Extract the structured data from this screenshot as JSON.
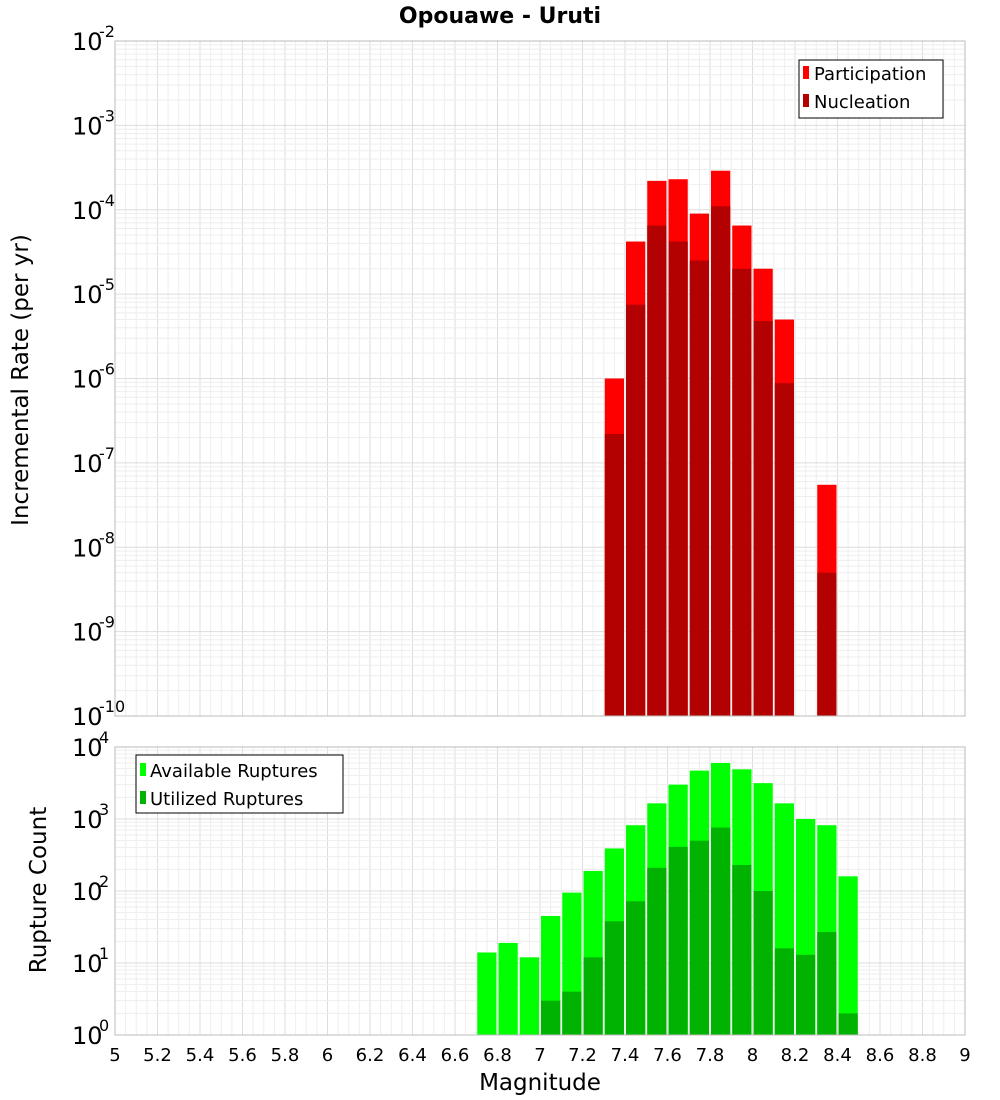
{
  "chart_data": [
    {
      "type": "bar",
      "title": "Opouawe - Uruti",
      "xlabel": "",
      "ylabel": "Incremental Rate (per yr)",
      "xlim": [
        5,
        9
      ],
      "ylim_exponents": [
        -10,
        -2
      ],
      "yscale": "log",
      "grid": true,
      "legend_position": "top-right",
      "bar_width": 0.1,
      "colors": {
        "participation": "#ff0000",
        "nucleation": "#b30000"
      },
      "legend": [
        "Participation",
        "Nucleation"
      ],
      "series": [
        {
          "name": "Participation",
          "x": [
            7.35,
            7.45,
            7.55,
            7.65,
            7.75,
            7.85,
            7.95,
            8.05,
            8.15,
            8.35
          ],
          "values": [
            1e-06,
            4.2e-05,
            0.00022,
            0.00023,
            9e-05,
            0.00029,
            6.5e-05,
            2e-05,
            5e-06,
            5.5e-08
          ]
        },
        {
          "name": "Nucleation",
          "x": [
            7.35,
            7.45,
            7.55,
            7.65,
            7.75,
            7.85,
            7.95,
            8.05,
            8.15,
            8.35
          ],
          "values": [
            2.2e-07,
            7.5e-06,
            6.5e-05,
            4.2e-05,
            2.5e-05,
            0.00011,
            2e-05,
            4.8e-06,
            8.8e-07,
            5e-09
          ]
        }
      ]
    },
    {
      "type": "bar",
      "title": "",
      "xlabel": "Magnitude",
      "ylabel": "Rupture Count",
      "xlim": [
        5,
        9
      ],
      "ylim_exponents": [
        0,
        4
      ],
      "yscale": "log",
      "grid": true,
      "legend_position": "top-left",
      "bar_width": 0.1,
      "colors": {
        "available": "#00ff00",
        "utilized": "#00b300"
      },
      "legend": [
        "Available Ruptures",
        "Utilized Ruptures"
      ],
      "x_ticks": [
        "5",
        "5.2",
        "5.4",
        "5.6",
        "5.8",
        "6",
        "6.2",
        "6.4",
        "6.6",
        "6.8",
        "7",
        "7.2",
        "7.4",
        "7.6",
        "7.8",
        "8",
        "8.2",
        "8.4",
        "8.6",
        "8.8",
        "9"
      ],
      "series": [
        {
          "name": "Available Ruptures",
          "x": [
            6.75,
            6.85,
            6.95,
            7.05,
            7.15,
            7.25,
            7.35,
            7.45,
            7.55,
            7.65,
            7.75,
            7.85,
            7.95,
            8.05,
            8.15,
            8.25,
            8.35,
            8.45
          ],
          "values": [
            14,
            19,
            12,
            45,
            95,
            190,
            390,
            820,
            1650,
            3000,
            4700,
            6000,
            4900,
            3150,
            1650,
            1000,
            820,
            160
          ]
        },
        {
          "name": "Utilized Ruptures",
          "x": [
            7.05,
            7.15,
            7.25,
            7.35,
            7.45,
            7.55,
            7.65,
            7.75,
            7.85,
            7.95,
            8.05,
            8.15,
            8.25,
            8.35,
            8.45
          ],
          "values": [
            3,
            4,
            12,
            38,
            72,
            210,
            410,
            500,
            760,
            230,
            100,
            16,
            13,
            27,
            2
          ]
        }
      ]
    }
  ]
}
